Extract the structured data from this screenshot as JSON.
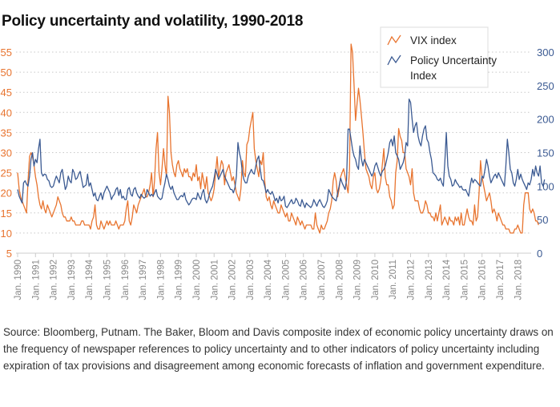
{
  "chart_data": {
    "type": "line",
    "title": "Policy uncertainty and volatility, 1990-2018",
    "xlabel": "",
    "ylabel_left": "",
    "ylabel_right": "",
    "x_tick_labels": [
      "Jan. 1990",
      "Jan. 1991",
      "Jan. 1992",
      "Jan. 1993",
      "Jan. 1994",
      "Jan. 1995",
      "Jan. 1996",
      "Jan. 1997",
      "Jan. 1998",
      "Jan. 1999",
      "Jan. 2000",
      "Jan. 2001",
      "Jan. 2002",
      "Jan. 2003",
      "Jan. 2004",
      "Jan. 2005",
      "Jan. 2006",
      "Jan. 2007",
      "Jan. 2008",
      "Jan. 2009",
      "Jan. 2010",
      "Jan. 2011",
      "Jan. 2012",
      "Jan. 2013",
      "Jan. 2014",
      "Jan. 2015",
      "Jan. 2016",
      "Jan. 2017",
      "Jan. 2018"
    ],
    "x_range": [
      1990.0,
      2018.75
    ],
    "left_axis": {
      "ticks": [
        5,
        10,
        15,
        20,
        25,
        30,
        35,
        40,
        45,
        50,
        55
      ],
      "ylim": [
        5,
        57
      ],
      "color": "#e8742f"
    },
    "right_axis": {
      "ticks": [
        0,
        50,
        100,
        150,
        200,
        250,
        300
      ],
      "ylim": [
        0,
        312
      ],
      "color": "#3b5a92"
    },
    "grid": true,
    "legend_position": "top-right",
    "series": [
      {
        "name": "VIX index",
        "axis": "left",
        "color": "#e8742f",
        "start": 1990.0,
        "step_months": 1,
        "values": [
          25,
          21,
          19,
          18,
          17,
          16,
          15,
          23,
          29,
          30,
          29,
          27,
          24,
          22,
          19,
          17,
          16,
          18,
          16,
          15,
          17,
          16,
          15,
          14,
          15,
          16,
          17,
          19,
          18,
          17,
          15,
          14,
          14,
          13,
          13,
          13,
          14,
          13,
          13,
          12,
          12,
          12,
          12,
          13,
          13,
          12,
          12,
          12,
          12,
          11,
          13,
          14,
          17,
          12,
          11,
          11,
          13,
          12,
          11,
          12,
          13,
          12,
          13,
          12,
          12,
          12,
          13,
          12,
          11,
          12,
          12,
          12,
          13,
          16,
          18,
          13,
          12,
          14,
          17,
          16,
          15,
          17,
          18,
          19,
          20,
          21,
          19,
          19,
          20,
          22,
          25,
          19,
          23,
          31,
          35,
          25,
          22,
          26,
          31,
          27,
          24,
          44,
          40,
          30,
          27,
          25,
          24,
          27,
          28,
          26,
          25,
          24,
          26,
          25,
          26,
          24,
          24,
          23,
          25,
          24,
          27,
          23,
          24,
          21,
          25,
          23,
          21,
          24,
          20,
          19,
          18,
          19,
          21,
          25,
          29,
          24,
          26,
          28,
          27,
          22,
          25,
          26,
          27,
          25,
          23,
          24,
          22,
          20,
          19,
          18,
          21,
          28,
          25,
          24,
          32,
          33,
          36,
          38,
          40,
          31,
          28,
          26,
          24,
          28,
          27,
          30,
          23,
          19,
          18,
          19,
          17,
          16,
          18,
          17,
          16,
          15,
          15,
          17,
          16,
          15,
          14,
          15,
          13,
          13,
          15,
          14,
          13,
          12,
          14,
          13,
          12,
          13,
          12,
          11,
          12,
          12,
          12,
          12,
          11,
          11,
          15,
          12,
          11,
          10,
          12,
          11,
          11,
          12,
          13,
          15,
          16,
          18,
          23,
          25,
          23,
          19,
          21,
          24,
          25,
          26,
          24,
          22,
          20,
          26,
          57,
          55,
          47,
          38,
          42,
          46,
          43,
          39,
          35,
          30,
          26,
          25,
          24,
          22,
          21,
          24,
          25,
          21,
          20,
          21,
          23,
          27,
          31,
          24,
          22,
          22,
          19,
          18,
          16,
          17,
          25,
          28,
          36,
          34,
          33,
          30,
          30,
          26,
          25,
          24,
          22,
          26,
          20,
          18,
          18,
          18,
          16,
          15,
          15,
          16,
          18,
          17,
          15,
          15,
          14,
          14,
          13,
          15,
          13,
          15,
          17,
          12,
          13,
          14,
          13,
          12,
          14,
          13,
          13,
          12,
          14,
          13,
          14,
          12,
          15,
          12,
          12,
          14,
          16,
          14,
          13,
          13,
          12,
          17,
          13,
          14,
          20,
          28,
          24,
          22,
          20,
          18,
          19,
          20,
          18,
          15,
          16,
          15,
          13,
          15,
          14,
          13,
          12,
          12,
          11,
          11,
          11,
          10,
          10,
          10,
          11,
          11,
          12,
          11,
          10,
          10,
          17,
          20,
          20,
          20,
          16,
          15,
          16,
          15,
          13,
          13,
          12
        ],
        "notes": "Approximate monthly closes read from plot; peak ~57 at Oct/Nov 2008"
      },
      {
        "name": "Policy Uncertainty Index",
        "axis": "right",
        "color": "#3b5a92",
        "start": 1990.0,
        "step_months": 1,
        "values": [
          95,
          85,
          80,
          75,
          105,
          108,
          103,
          100,
          115,
          140,
          150,
          130,
          140,
          135,
          155,
          170,
          120,
          115,
          118,
          117,
          110,
          108,
          100,
          98,
          100,
          108,
          115,
          110,
          105,
          120,
          125,
          110,
          95,
          100,
          115,
          108,
          105,
          125,
          120,
          110,
          112,
          118,
          122,
          110,
          98,
          100,
          102,
          118,
          100,
          105,
          95,
          85,
          90,
          80,
          78,
          85,
          90,
          80,
          90,
          95,
          100,
          95,
          90,
          80,
          85,
          88,
          95,
          98,
          86,
          95,
          82,
          85,
          80,
          80,
          95,
          98,
          88,
          85,
          95,
          98,
          90,
          85,
          82,
          88,
          84,
          82,
          84,
          95,
          90,
          85,
          88,
          85,
          90,
          95,
          85,
          82,
          80,
          82,
          95,
          105,
          118,
          110,
          100,
          95,
          100,
          90,
          85,
          80,
          80,
          84,
          86,
          84,
          90,
          80,
          76,
          72,
          75,
          80,
          82,
          82,
          80,
          90,
          84,
          80,
          90,
          95,
          80,
          75,
          80,
          90,
          95,
          100,
          112,
          125,
          118,
          110,
          115,
          120,
          125,
          115,
          110,
          105,
          100,
          95,
          95,
          90,
          98,
          115,
          165,
          150,
          140,
          120,
          110,
          105,
          105,
          115,
          120,
          125,
          120,
          118,
          130,
          140,
          145,
          125,
          110,
          108,
          100,
          90,
          95,
          90,
          88,
          92,
          86,
          78,
          82,
          75,
          85,
          78,
          80,
          85,
          70,
          68,
          72,
          76,
          80,
          74,
          75,
          82,
          78,
          72,
          70,
          80,
          74,
          68,
          75,
          72,
          70,
          68,
          72,
          80,
          75,
          70,
          76,
          80,
          75,
          70,
          68,
          72,
          78,
          95,
          90,
          85,
          82,
          80,
          78,
          90,
          100,
          112,
          105,
          100,
          95,
          110,
          185,
          185,
          170,
          155,
          145,
          140,
          130,
          125,
          160,
          140,
          130,
          140,
          135,
          130,
          125,
          120,
          115,
          120,
          130,
          135,
          128,
          120,
          115,
          122,
          125,
          130,
          140,
          150,
          165,
          170,
          160,
          175,
          150,
          145,
          140,
          125,
          130,
          135,
          145,
          165,
          160,
          230,
          225,
          200,
          180,
          190,
          195,
          175,
          165,
          160,
          175,
          185,
          190,
          170,
          165,
          150,
          140,
          120,
          118,
          115,
          110,
          108,
          112,
          105,
          100,
          135,
          180,
          130,
          115,
          110,
          100,
          102,
          110,
          105,
          102,
          98,
          100,
          95,
          94,
          95,
          90,
          85,
          100,
          112,
          105,
          110,
          108,
          105,
          102,
          100,
          115,
          112,
          125,
          140,
          130,
          115,
          105,
          110,
          115,
          118,
          112,
          120,
          115,
          110,
          105,
          100,
          130,
          170,
          150,
          125,
          120,
          105,
          100,
          110,
          125,
          110,
          118,
          110,
          105,
          100,
          95,
          105,
          102,
          110,
          125,
          115,
          130,
          120,
          115,
          130,
          105,
          100,
          110
        ]
      }
    ]
  },
  "title": "Policy uncertainty and volatility, 1990-2018",
  "legend": {
    "items": [
      {
        "label": "VIX index",
        "color": "#e8742f",
        "icon": "line-zigzag-icon"
      },
      {
        "label_line1": "Policy Uncertainty",
        "label_line2": "Index",
        "color": "#3b5a92",
        "icon": "line-zigzag-icon"
      }
    ]
  },
  "source_note": "Source: Bloomberg, Putnam. The Baker, Bloom and Davis composite index of economic policy uncertainty draws on the frequency of newspaper references to policy uncertainty and to other indicators of policy uncertainty including expiration of tax provisions and disagreement among economic forecasts of inflation and government expenditure."
}
